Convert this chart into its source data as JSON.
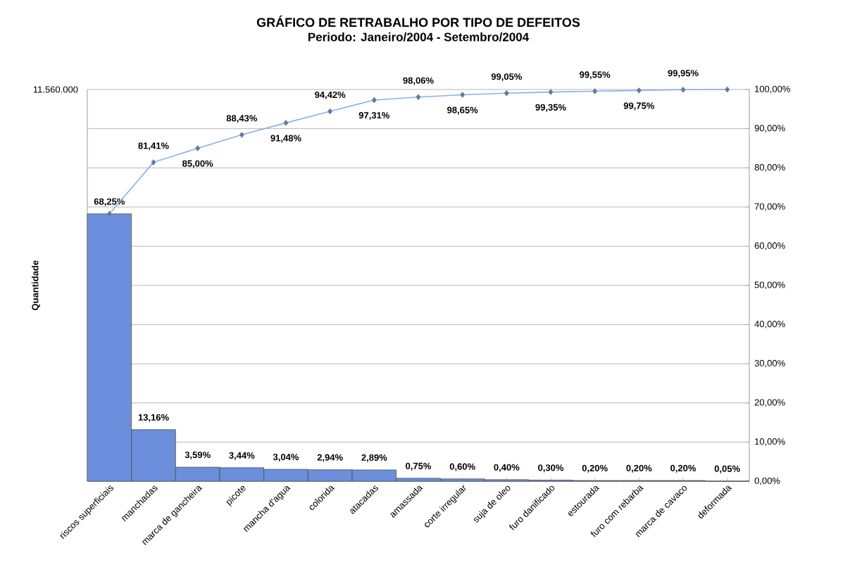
{
  "chart_data": {
    "type": "bar",
    "title": "GRÁFICO DE RETRABALHO POR TIPO DE DEFEITOS",
    "subtitle": "Periodo: Janeiro/2004 - Setembro/2004",
    "ylabel": "Quantidade",
    "annotations": [
      "11.560.000"
    ],
    "categories": [
      "riscos superficiais",
      "manchadas",
      "marca de gancheira",
      "picote",
      "mancha d'agua",
      "colorida",
      "atacadas",
      "amassada",
      "corte irregular",
      "suja de oleo",
      "furo danificado",
      "estourada",
      "furo com rebarba",
      "marca de cavaco",
      "deformada"
    ],
    "series": [
      {
        "color": "#6b8fdc",
        "values": [
          68.25,
          13.16,
          3.59,
          3.44,
          3.04,
          2.94,
          2.89,
          0.75,
          0.6,
          0.4,
          0.3,
          0.2,
          0.2,
          0.2,
          0.05
        ],
        "value_labels": [
          "68,25%",
          "13,16%",
          "3,59%",
          "3,44%",
          "3,04%",
          "2,94%",
          "2,89%",
          "0,75%",
          "0,60%",
          "0,40%",
          "0,30%",
          "0,20%",
          "0,20%",
          "0,20%",
          "0,05%"
        ]
      },
      {
        "type": "line",
        "color": "#8eaee6",
        "marker": "diamond",
        "line_style": "solid",
        "values": [
          68.25,
          81.41,
          85.0,
          88.43,
          91.48,
          94.42,
          97.31,
          98.06,
          98.65,
          99.05,
          99.35,
          99.55,
          99.75,
          99.95,
          100
        ],
        "value_labels": [
          null,
          "81,41%",
          "85,00%",
          "88,43%",
          "91,48%",
          "94,42%",
          "97,31%",
          "98,06%",
          "98,65%",
          "99,05%",
          "99,35%",
          "99,55%",
          "99,75%",
          "99,95%",
          null
        ]
      }
    ],
    "ylim": [
      0,
      100
    ],
    "yticks": [
      {
        "value": 0,
        "label": "0,00%"
      },
      {
        "value": 10,
        "label": "10,00%"
      },
      {
        "value": 20,
        "label": "20,00%"
      },
      {
        "value": 30,
        "label": "30,00%"
      },
      {
        "value": 40,
        "label": "40,00%"
      },
      {
        "value": 50,
        "label": "50,00%"
      },
      {
        "value": 60,
        "label": "60,00%"
      },
      {
        "value": 70,
        "label": "70,00%"
      },
      {
        "value": 80,
        "label": "80,00%"
      },
      {
        "value": 90,
        "label": "90,00%"
      },
      {
        "value": 100,
        "label": "100,00%"
      }
    ],
    "grid": "y"
  }
}
